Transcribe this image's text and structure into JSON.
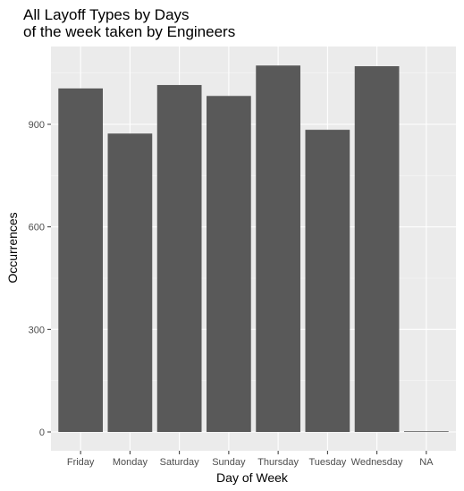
{
  "chart_data": {
    "type": "bar",
    "title_lines": [
      "All Layoff Types by Days",
      "of the week taken by Engineers"
    ],
    "xlabel": "Day of Week",
    "ylabel": "Occurrences",
    "categories": [
      "Friday",
      "Monday",
      "Saturday",
      "Sunday",
      "Thursday",
      "Tuesday",
      "Wednesday",
      "NA"
    ],
    "values": [
      1005,
      873,
      1015,
      983,
      1072,
      884,
      1070,
      2
    ],
    "ylim": [
      0,
      1125
    ],
    "yticks": [
      0,
      300,
      600,
      900
    ],
    "ytick_labels": [
      "0",
      "300",
      "600",
      "900"
    ],
    "grid": true,
    "legend": "none",
    "colors": {
      "bar": "#595959",
      "panel": "#ebebeb",
      "grid_major": "#ffffff",
      "grid_minor": "#f5f5f5",
      "tick_text": "#4d4d4d"
    }
  }
}
